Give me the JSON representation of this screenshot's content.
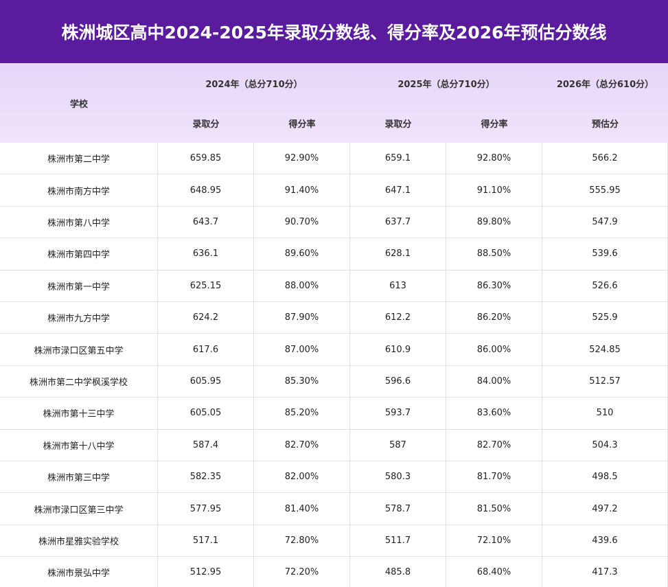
{
  "title": "株洲城区高中2024-2025年录取分数线、得分率及2026年预估分数线",
  "header": {
    "school": "学校",
    "groups": [
      {
        "label": "2024年（总分710分）",
        "columns": [
          "录取分",
          "得分率"
        ]
      },
      {
        "label": "2025年（总分710分）",
        "columns": [
          "录取分",
          "得分率"
        ]
      },
      {
        "label": "2026年（总分610分）",
        "columns": [
          "预估分"
        ]
      }
    ]
  },
  "rows": [
    [
      "株洲市第二中学",
      "659.85",
      "92.90%",
      "659.1",
      "92.80%",
      "566.2"
    ],
    [
      "株洲市南方中学",
      "648.95",
      "91.40%",
      "647.1",
      "91.10%",
      "555.95"
    ],
    [
      "株洲市第八中学",
      "643.7",
      "90.70%",
      "637.7",
      "89.80%",
      "547.9"
    ],
    [
      "株洲市第四中学",
      "636.1",
      "89.60%",
      "628.1",
      "88.50%",
      "539.6"
    ],
    [
      "株洲市第一中学",
      "625.15",
      "88.00%",
      "613",
      "86.30%",
      "526.6"
    ],
    [
      "株洲市九方中学",
      "624.2",
      "87.90%",
      "612.2",
      "86.20%",
      "525.9"
    ],
    [
      "株洲市渌口区第五中学",
      "617.6",
      "87.00%",
      "610.9",
      "86.00%",
      "524.85"
    ],
    [
      "株洲市第二中学枫溪学校",
      "605.95",
      "85.30%",
      "596.6",
      "84.00%",
      "512.57"
    ],
    [
      "株洲市第十三中学",
      "605.05",
      "85.20%",
      "593.7",
      "83.60%",
      "510"
    ],
    [
      "株洲市第十八中学",
      "587.4",
      "82.70%",
      "587",
      "82.70%",
      "504.3"
    ],
    [
      "株洲市第三中学",
      "582.35",
      "82.00%",
      "580.3",
      "81.70%",
      "498.5"
    ],
    [
      "株洲市渌口区第三中学",
      "577.95",
      "81.40%",
      "578.7",
      "81.50%",
      "497.2"
    ],
    [
      "株洲市星雅实验学校",
      "517.1",
      "72.80%",
      "511.7",
      "72.10%",
      "439.6"
    ],
    [
      "株洲市景弘中学",
      "512.95",
      "72.20%",
      "485.8",
      "68.40%",
      "417.3"
    ]
  ]
}
